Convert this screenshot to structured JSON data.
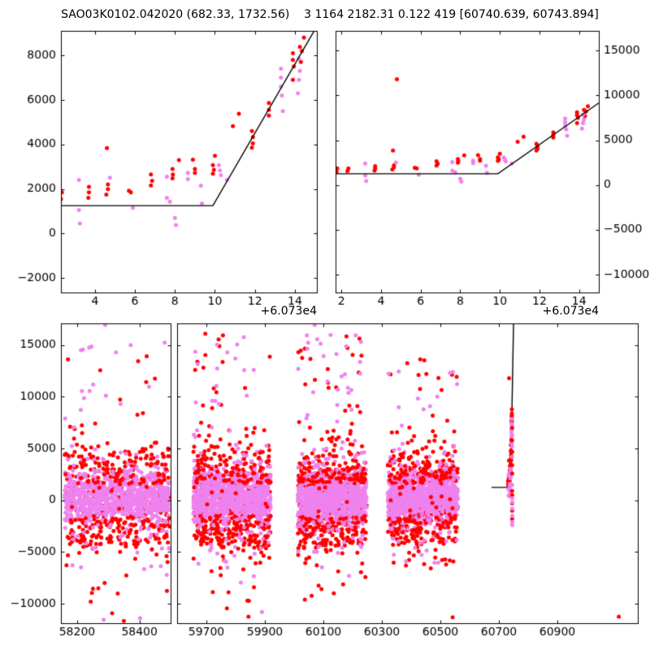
{
  "title": "SAO03K0102.042020 (682.33, 1732.56)    3 1164 2182.31 0.122 419 [60740.639, 60743.894]",
  "colors": {
    "red": "#ff0000",
    "violet": "#ee82ee",
    "line": "#000000",
    "text": "#000000",
    "background": "#ffffff"
  },
  "marker_radius": 2.5,
  "random_seed": 13,
  "chart_data": {
    "type": "scatter",
    "x_offset_label": "+6.073e4",
    "model_line": {
      "flat_y": 1250,
      "kink_x": 60739.9,
      "slope_per_day": 1550,
      "bottom_start_x": 60675
    },
    "event_points": {
      "red": [
        [
          60731.75,
          1500
        ],
        [
          60731.78,
          1850
        ],
        [
          60732.3,
          1550
        ],
        [
          60732.35,
          1850
        ],
        [
          60733.7,
          2090
        ],
        [
          60733.7,
          1850
        ],
        [
          60733.67,
          1600
        ],
        [
          60734.6,
          3840
        ],
        [
          60734.65,
          2200
        ],
        [
          60734.65,
          1990
        ],
        [
          60734.57,
          1745
        ],
        [
          60734.8,
          11800
        ],
        [
          60735.7,
          1920
        ],
        [
          60735.8,
          1850
        ],
        [
          60736.8,
          2650
        ],
        [
          60736.86,
          2370
        ],
        [
          60736.8,
          2160
        ],
        [
          60737.88,
          2900
        ],
        [
          60737.9,
          2650
        ],
        [
          60737.88,
          2480
        ],
        [
          60738.2,
          3300
        ],
        [
          60738.9,
          3320
        ],
        [
          60739.0,
          2900
        ],
        [
          60739.0,
          2720
        ],
        [
          60739.9,
          3070
        ],
        [
          60739.95,
          2860
        ],
        [
          60739.9,
          2690
        ],
        [
          60740.0,
          3490
        ],
        [
          60740.9,
          4820
        ],
        [
          60741.2,
          5380
        ],
        [
          60741.85,
          4600
        ],
        [
          60741.9,
          4330
        ],
        [
          60741.9,
          4050
        ],
        [
          60741.85,
          3850
        ],
        [
          60742.7,
          5860
        ],
        [
          60742.7,
          5550
        ],
        [
          60742.7,
          5300
        ],
        [
          60743.9,
          8100
        ],
        [
          60743.9,
          7800
        ],
        [
          60743.95,
          7500
        ],
        [
          60743.9,
          6900
        ],
        [
          60744.25,
          8380
        ],
        [
          60744.35,
          8200
        ],
        [
          60744.3,
          7700
        ],
        [
          60744.45,
          8800
        ]
      ],
      "violet": [
        [
          60733.2,
          2400
        ],
        [
          60733.2,
          1050
        ],
        [
          60733.25,
          450
        ],
        [
          60734.75,
          2500
        ],
        [
          60735.9,
          1150
        ],
        [
          60737.6,
          2550
        ],
        [
          60737.6,
          1600
        ],
        [
          60737.75,
          1430
        ],
        [
          60738.0,
          700
        ],
        [
          60738.05,
          380
        ],
        [
          60738.65,
          2720
        ],
        [
          60738.65,
          2440
        ],
        [
          60739.3,
          2150
        ],
        [
          60739.35,
          1350
        ],
        [
          60740.2,
          3070
        ],
        [
          60740.25,
          2830
        ],
        [
          60740.3,
          2620
        ],
        [
          60740.6,
          2400
        ],
        [
          60743.3,
          7400
        ],
        [
          60743.3,
          7000
        ],
        [
          60743.3,
          6600
        ],
        [
          60743.35,
          6200
        ],
        [
          60743.4,
          5500
        ],
        [
          60744.2,
          7850
        ],
        [
          60744.25,
          7300
        ],
        [
          60744.2,
          6900
        ],
        [
          60744.15,
          6300
        ]
      ]
    },
    "event_extra": {
      "red": [
        [
          60745.2,
          -300
        ],
        [
          60745.4,
          -1000
        ],
        [
          60745.3,
          -1800
        ],
        [
          60745.6,
          500
        ],
        [
          60745.2,
          900
        ],
        [
          60745.4,
          2600
        ],
        [
          60745.3,
          3400
        ],
        [
          60745.5,
          4700
        ],
        [
          60745.2,
          5800
        ],
        [
          60745.4,
          7000
        ]
      ],
      "violet": [
        [
          60745.3,
          -800
        ],
        [
          60745.5,
          -1500
        ],
        [
          60745.4,
          -2100
        ],
        [
          60745.6,
          -2400
        ],
        [
          60745.3,
          200
        ],
        [
          60745.5,
          -200
        ],
        [
          60745.4,
          1500
        ],
        [
          60745.2,
          4200
        ],
        [
          60745.5,
          5200
        ],
        [
          60745.3,
          6300
        ]
      ]
    },
    "stray_points": {
      "red": [
        [
          58350,
          -11650
        ],
        [
          59844,
          -11250
        ],
        [
          60542,
          -11300
        ],
        [
          61110,
          -11250
        ]
      ],
      "violet": [
        [
          58285,
          -11550
        ],
        [
          58402,
          -11380
        ],
        [
          58290,
          16950
        ],
        [
          59890,
          -10800
        ],
        [
          60070,
          16950
        ]
      ]
    },
    "season_clusters": [
      {
        "x": [
          58160,
          58498
        ],
        "core": {
          "violet_n": 720,
          "violet_sigma": 1050,
          "red_n": 280,
          "red_sigma": 2500
        },
        "below_red": {
          "n": 95,
          "range": [
            -4400,
            -1500
          ]
        },
        "strand_violet": {
          "n": 22,
          "range": [
            -4900,
            -1600
          ]
        },
        "above_violet": {
          "n": 80,
          "range": [
            1600,
            5600
          ]
        },
        "above_red": {
          "n": 70,
          "range": [
            1600,
            6600
          ]
        },
        "far_red": {
          "n": 52,
          "range": [
            -11000,
            14500
          ]
        },
        "far_violet": {
          "n": 42,
          "range": [
            -8000,
            15800
          ]
        }
      },
      {
        "x": [
          59655,
          59920
        ],
        "core": {
          "violet_n": 760,
          "violet_sigma": 1150,
          "red_n": 300,
          "red_sigma": 2700
        },
        "below_red": {
          "n": 100,
          "range": [
            -4600,
            -1500
          ]
        },
        "strand_violet": {
          "n": 22,
          "range": [
            -5200,
            -1600
          ]
        },
        "above_violet": {
          "n": 95,
          "range": [
            1700,
            6000
          ]
        },
        "above_red": {
          "n": 85,
          "range": [
            1700,
            7000
          ]
        },
        "far_red": {
          "n": 58,
          "range": [
            -10700,
            16700
          ]
        },
        "far_violet": {
          "n": 46,
          "range": [
            -8000,
            16200
          ]
        }
      },
      {
        "x": [
          60012,
          60248
        ],
        "core": {
          "violet_n": 760,
          "violet_sigma": 1150,
          "red_n": 300,
          "red_sigma": 2700
        },
        "below_red": {
          "n": 95,
          "range": [
            -4400,
            -1500
          ]
        },
        "strand_violet": {
          "n": 20,
          "range": [
            -5000,
            -1600
          ]
        },
        "above_violet": {
          "n": 90,
          "range": [
            1700,
            5800
          ]
        },
        "above_red": {
          "n": 85,
          "range": [
            1700,
            6800
          ]
        },
        "far_red": {
          "n": 55,
          "range": [
            -9800,
            16400
          ]
        },
        "far_violet": {
          "n": 44,
          "range": [
            -7500,
            16900
          ]
        }
      },
      {
        "x": [
          60320,
          60560
        ],
        "core": {
          "violet_n": 720,
          "violet_sigma": 1100,
          "red_n": 280,
          "red_sigma": 2600
        },
        "below_red": {
          "n": 90,
          "range": [
            -4300,
            -1500
          ]
        },
        "strand_violet": {
          "n": 18,
          "range": [
            -4800,
            -1600
          ]
        },
        "above_violet": {
          "n": 80,
          "range": [
            1600,
            5600
          ]
        },
        "above_red": {
          "n": 75,
          "range": [
            1600,
            6400
          ]
        },
        "far_red": {
          "n": 48,
          "range": [
            -8300,
            14300
          ]
        },
        "far_violet": {
          "n": 38,
          "range": [
            -6500,
            12800
          ]
        }
      }
    ],
    "panels": [
      {
        "name": "top-left",
        "rect": [
          75,
          38,
          315,
          322
        ],
        "xlim": [
          60732.3,
          60745.1
        ],
        "ylim": [
          -2650,
          9100
        ],
        "xticks": [
          [
            60734,
            "4"
          ],
          [
            60736,
            "6"
          ],
          [
            60738,
            "8"
          ],
          [
            60740,
            "10"
          ],
          [
            60742,
            "12"
          ],
          [
            60744,
            "14"
          ]
        ],
        "yticks": [
          [
            -2000,
            "−2000"
          ],
          [
            0,
            "0"
          ],
          [
            2000,
            "2000"
          ],
          [
            4000,
            "4000"
          ],
          [
            6000,
            "6000"
          ],
          [
            8000,
            "8000"
          ]
        ],
        "ylabel_side": "left",
        "offset_label": "+6.073e4",
        "draw": [
          "event",
          "model"
        ]
      },
      {
        "name": "top-right",
        "rect": [
          413,
          38,
          324,
          322
        ],
        "xlim": [
          60731.7,
          60745.0
        ],
        "ylim": [
          -12000,
          17200
        ],
        "xticks": [
          [
            60732,
            "2"
          ],
          [
            60734,
            "4"
          ],
          [
            60736,
            "6"
          ],
          [
            60738,
            "8"
          ],
          [
            60740,
            "10"
          ],
          [
            60742,
            "12"
          ],
          [
            60744,
            "14"
          ]
        ],
        "yticks": [
          [
            -10000,
            "−10000"
          ],
          [
            -5000,
            "−5000"
          ],
          [
            0,
            "0"
          ],
          [
            5000,
            "5000"
          ],
          [
            10000,
            "10000"
          ],
          [
            15000,
            "15000"
          ]
        ],
        "ylabel_side": "right",
        "offset_label": "+6.073e4",
        "draw": [
          "event",
          "model"
        ]
      },
      {
        "name": "bottom-left",
        "rect": [
          75,
          398,
          135,
          369
        ],
        "xlim": [
          58148,
          58500
        ],
        "ylim": [
          -11875,
          17100
        ],
        "xticks": [
          [
            58200,
            "58200"
          ],
          [
            58400,
            "58400"
          ]
        ],
        "yticks": [
          [
            -10000,
            "−10000"
          ],
          [
            -5000,
            "−5000"
          ],
          [
            0,
            "0"
          ],
          [
            5000,
            "5000"
          ],
          [
            10000,
            "10000"
          ],
          [
            15000,
            "15000"
          ]
        ],
        "ylabel_side": "left",
        "offset_label": "",
        "draw": [
          "season-0",
          "strays"
        ]
      },
      {
        "name": "bottom-right",
        "rect": [
          218,
          398,
          567,
          369
        ],
        "xlim": [
          59600,
          61175
        ],
        "ylim": [
          -11875,
          17100
        ],
        "xticks": [
          [
            59700,
            "59700"
          ],
          [
            59900,
            "59900"
          ],
          [
            60100,
            "60100"
          ],
          [
            60300,
            "60300"
          ],
          [
            60500,
            "60500"
          ],
          [
            60700,
            "60700"
          ],
          [
            60900,
            "60900"
          ]
        ],
        "yticks": [
          [
            -10000,
            ""
          ],
          [
            -5000,
            ""
          ],
          [
            0,
            ""
          ],
          [
            5000,
            ""
          ],
          [
            10000,
            ""
          ],
          [
            15000,
            ""
          ]
        ],
        "ylabel_side": "none",
        "offset_label": "",
        "draw": [
          "season-1",
          "season-2",
          "season-3",
          "strays",
          "model-bottom",
          "event",
          "event-extra"
        ]
      }
    ]
  }
}
